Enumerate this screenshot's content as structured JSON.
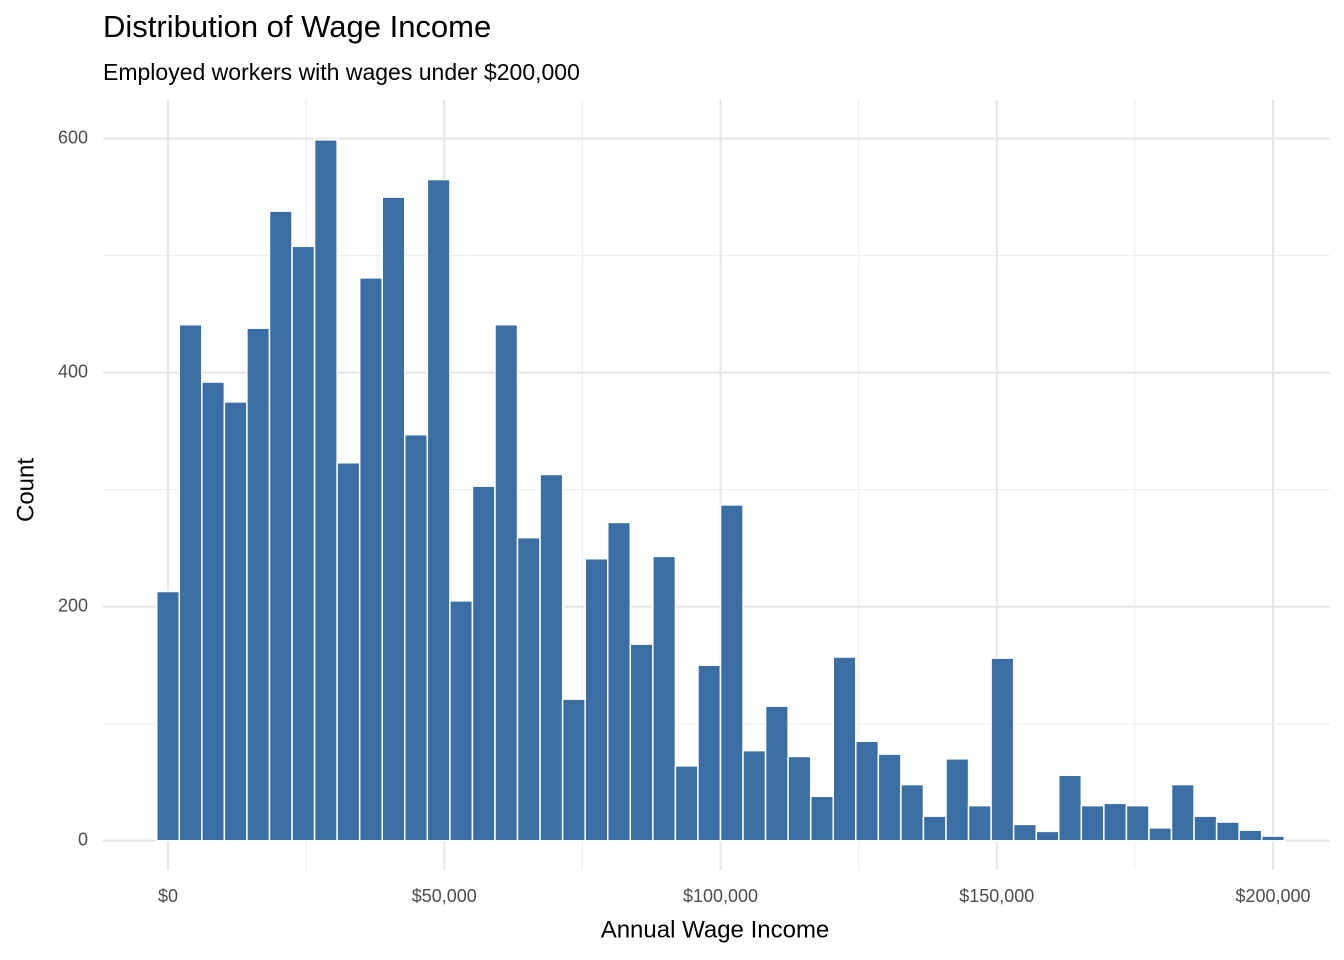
{
  "chart_data": {
    "type": "histogram",
    "title": "Distribution of Wage Income",
    "subtitle": "Employed workers with wages under $200,000",
    "x_label": "Annual Wage Income",
    "y_label": "Count",
    "color": "#3b6ea5",
    "bins": [
      -2041,
      2041,
      6122,
      10204,
      14286,
      18367,
      22449,
      26531,
      30612,
      34694,
      38776,
      42857,
      46939,
      51020,
      55102,
      59184,
      63265,
      67347,
      71429,
      75510,
      79592,
      83673,
      87755,
      91837,
      95918,
      100000,
      104082,
      108163,
      112245,
      116327,
      120408,
      124490,
      128571,
      132653,
      136735,
      140816,
      144898,
      148980,
      153061,
      157143,
      161224,
      165306,
      169388,
      173469,
      177551,
      181633,
      185714,
      189796,
      193878,
      197959,
      202041
    ],
    "values": [
      213,
      441,
      392,
      375,
      438,
      538,
      508,
      599,
      323,
      481,
      550,
      347,
      565,
      205,
      303,
      441,
      259,
      313,
      121,
      241,
      272,
      168,
      243,
      64,
      150,
      287,
      77,
      115,
      72,
      38,
      157,
      85,
      74,
      48,
      21,
      70,
      30,
      156,
      14,
      8,
      56,
      30,
      32,
      30,
      11,
      48,
      21,
      16,
      9,
      4
    ],
    "xlim": [
      -11765,
      210317
    ],
    "ylim": [
      -25,
      633
    ],
    "xticks": [
      {
        "value": 0,
        "label": "$0"
      },
      {
        "value": 50000,
        "label": "$50,000"
      },
      {
        "value": 100000,
        "label": "$100,000"
      },
      {
        "value": 150000,
        "label": "$150,000"
      },
      {
        "value": 200000,
        "label": "$200,000"
      }
    ],
    "yticks": [
      0,
      200,
      400,
      600
    ],
    "x_minor_ticks": [
      25000,
      75000,
      125000,
      175000
    ],
    "y_minor_ticks": [
      100,
      300,
      500
    ],
    "grid": true
  }
}
